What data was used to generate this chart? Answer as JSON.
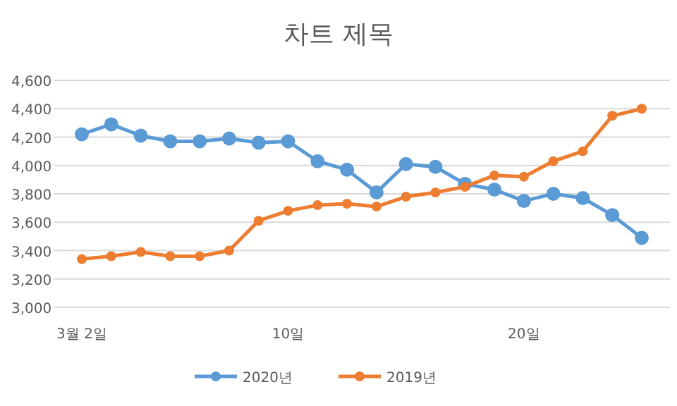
{
  "chart_data": {
    "type": "line",
    "title": "차트 제목",
    "categories": [
      "3월 2일",
      null,
      null,
      null,
      null,
      null,
      null,
      "10일",
      null,
      null,
      null,
      null,
      null,
      null,
      null,
      "20일",
      null,
      null,
      null,
      null
    ],
    "series": [
      {
        "name": "2020년",
        "color": "#5b9bd5",
        "values": [
          4220,
          4290,
          4210,
          4170,
          4170,
          4190,
          4160,
          4170,
          4030,
          3970,
          3810,
          4010,
          3990,
          3870,
          3830,
          3750,
          3800,
          3770,
          3650,
          3490
        ]
      },
      {
        "name": "2019년",
        "color": "#ed7d31",
        "values": [
          3340,
          3360,
          3390,
          3360,
          3360,
          3400,
          3610,
          3680,
          3720,
          3730,
          3710,
          3780,
          3810,
          3850,
          3930,
          3920,
          4030,
          4100,
          4350,
          4400
        ]
      }
    ],
    "ylim": [
      3000,
      4600
    ],
    "yticks": [
      {
        "value": 3000,
        "label": "3,000"
      },
      {
        "value": 3200,
        "label": "3,200"
      },
      {
        "value": 3400,
        "label": "3,400"
      },
      {
        "value": 3600,
        "label": "3,600"
      },
      {
        "value": 3800,
        "label": "3,800"
      },
      {
        "value": 4000,
        "label": "4,000"
      },
      {
        "value": 4200,
        "label": "4,200"
      },
      {
        "value": 4400,
        "label": "4,400"
      },
      {
        "value": 4600,
        "label": "4,600"
      }
    ],
    "grid": "y",
    "legend": "bottom",
    "marker": "circle",
    "line_style": "solid"
  }
}
